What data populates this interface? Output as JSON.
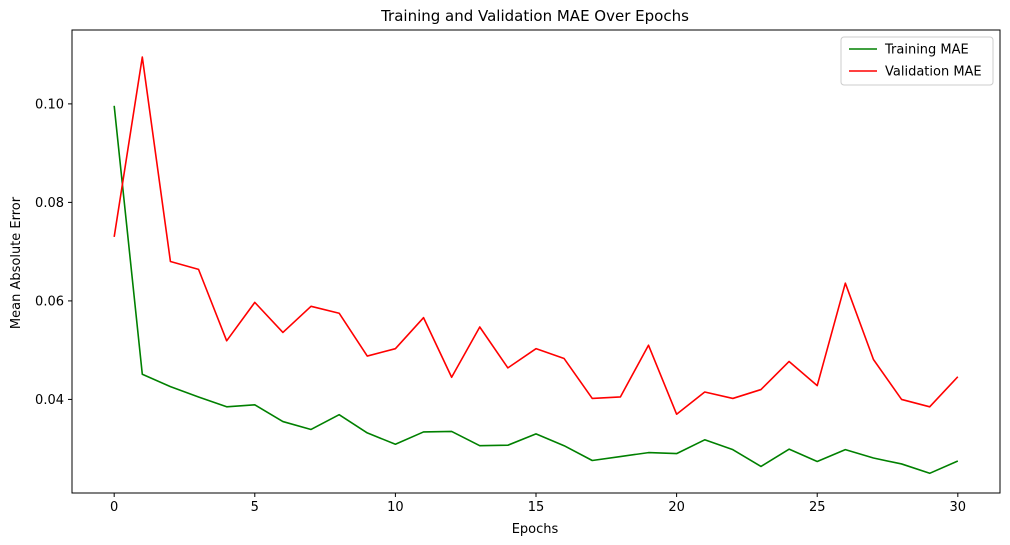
{
  "chart_data": {
    "type": "line",
    "title": "Training and Validation MAE Over Epochs",
    "xlabel": "Epochs",
    "ylabel": "Mean Absolute Error",
    "xlim": [
      -1.5,
      31.5
    ],
    "ylim": [
      0.021,
      0.115
    ],
    "xticks": [
      0,
      5,
      10,
      15,
      20,
      25,
      30
    ],
    "yticks": [
      0.04,
      0.06,
      0.08,
      0.1
    ],
    "ytick_labels": [
      "0.04",
      "0.06",
      "0.08",
      "0.10"
    ],
    "grid": false,
    "legend_position": "top-right",
    "x": [
      0,
      1,
      2,
      3,
      4,
      5,
      6,
      7,
      8,
      9,
      10,
      11,
      12,
      13,
      14,
      15,
      16,
      17,
      18,
      19,
      20,
      21,
      22,
      23,
      24,
      25,
      26,
      27,
      28,
      29,
      30
    ],
    "series": [
      {
        "name": "Training MAE",
        "color": "#008000",
        "values": [
          0.0996,
          0.0451,
          0.0426,
          0.0405,
          0.0385,
          0.0389,
          0.0355,
          0.0339,
          0.0369,
          0.0332,
          0.0309,
          0.0334,
          0.0335,
          0.0306,
          0.0307,
          0.033,
          0.0306,
          0.0276,
          0.0284,
          0.0292,
          0.029,
          0.0318,
          0.0298,
          0.0264,
          0.0299,
          0.0274,
          0.0298,
          0.0281,
          0.0269,
          0.025,
          0.0275
        ]
      },
      {
        "name": "Validation MAE",
        "color": "#ff0000",
        "values": [
          0.073,
          0.1095,
          0.068,
          0.0664,
          0.0519,
          0.0597,
          0.0536,
          0.0589,
          0.0575,
          0.0488,
          0.0503,
          0.0566,
          0.0445,
          0.0547,
          0.0464,
          0.0503,
          0.0483,
          0.0402,
          0.0405,
          0.051,
          0.037,
          0.0415,
          0.0402,
          0.042,
          0.0477,
          0.0428,
          0.0636,
          0.0481,
          0.04,
          0.0385,
          0.0446
        ]
      }
    ]
  }
}
